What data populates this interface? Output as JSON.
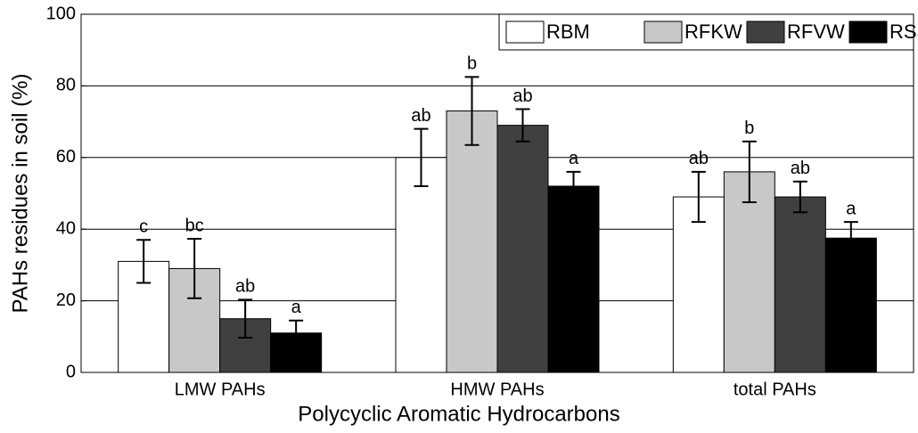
{
  "chart_data": {
    "type": "bar",
    "ylabel": "PAHs residues in soil (%)",
    "xlabel": "Polycyclic Aromatic Hydrocarbons",
    "categories": [
      "LMW PAHs",
      "HMW PAHs",
      "total PAHs"
    ],
    "series": [
      {
        "name": "RBM",
        "color": "#ffffff",
        "values": [
          31,
          60,
          49
        ],
        "errors": [
          6,
          8,
          7
        ],
        "labels": [
          "c",
          "ab",
          "ab"
        ]
      },
      {
        "name": "RFKW",
        "color": "#c8c8c8",
        "values": [
          29,
          73,
          56
        ],
        "errors": [
          8.3,
          9.5,
          8.5
        ],
        "labels": [
          "bc",
          "b",
          "b"
        ]
      },
      {
        "name": "RFVW",
        "color": "#404040",
        "values": [
          15,
          69,
          49
        ],
        "errors": [
          5.3,
          4.5,
          4.3
        ],
        "labels": [
          "ab",
          "ab",
          "ab"
        ]
      },
      {
        "name": "RSS",
        "color": "#000000",
        "values": [
          11,
          52,
          37.5
        ],
        "errors": [
          3.5,
          4,
          4.5
        ],
        "labels": [
          "a",
          "a",
          "a"
        ]
      }
    ],
    "ylim": [
      0,
      100
    ],
    "yticks": [
      0,
      20,
      40,
      60,
      80,
      100
    ],
    "grid": true,
    "legend": "top-right"
  }
}
